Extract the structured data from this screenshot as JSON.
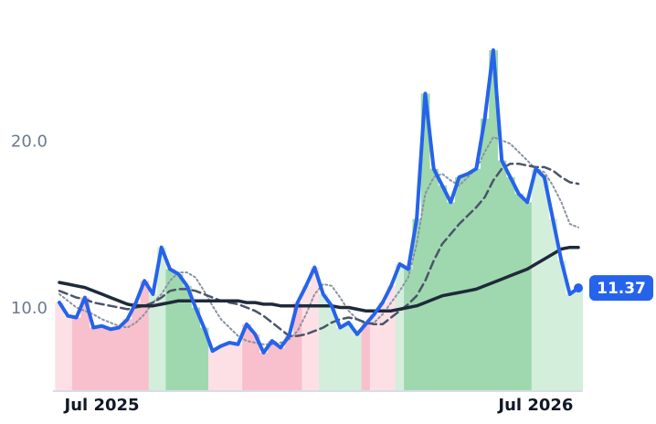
{
  "chart_data": {
    "type": "line",
    "categories": [
      null,
      null,
      null,
      null,
      null,
      "Jul 2025",
      null,
      null,
      null,
      null,
      null,
      null,
      null,
      null,
      null,
      null,
      null,
      null,
      null,
      null,
      null,
      null,
      null,
      null,
      null,
      null,
      null,
      null,
      null,
      null,
      null,
      null,
      null,
      null,
      null,
      null,
      null,
      null,
      null,
      null,
      null,
      null,
      null,
      null,
      null,
      null,
      null,
      null,
      null,
      null,
      null,
      null,
      null,
      null,
      null,
      null,
      "Jul 2026",
      null,
      null,
      null,
      null,
      null
    ],
    "series": [
      {
        "color": "#2563eb",
        "style": "solid",
        "width": 4,
        "bars": true,
        "values": [
          10.5,
          9.7,
          9.6,
          10.8,
          9.0,
          9.1,
          8.9,
          9.0,
          9.5,
          10.5,
          11.8,
          11.0,
          13.8,
          12.5,
          12.2,
          11.5,
          10.2,
          9.0,
          7.6,
          7.9,
          8.1,
          8.0,
          9.2,
          8.6,
          7.5,
          8.2,
          7.8,
          8.5,
          10.5,
          11.5,
          12.6,
          11.0,
          10.3,
          9.0,
          9.3,
          8.6,
          9.2,
          9.8,
          10.5,
          11.5,
          12.8,
          12.5,
          15.5,
          23.0,
          18.5,
          17.5,
          16.5,
          18.0,
          18.2,
          18.5,
          21.5,
          25.6,
          19.0,
          18.0,
          17.0,
          16.5,
          18.5,
          18.0,
          15.5,
          13.0,
          11.0,
          11.37
        ]
      },
      {
        "color": "#1e2a3a",
        "style": "solid",
        "width": 3.5,
        "values": [
          11.7,
          11.6,
          11.5,
          11.4,
          11.2,
          11.0,
          10.8,
          10.6,
          10.4,
          10.3,
          10.3,
          10.3,
          10.4,
          10.5,
          10.6,
          10.6,
          10.6,
          10.6,
          10.6,
          10.6,
          10.6,
          10.6,
          10.5,
          10.5,
          10.4,
          10.4,
          10.3,
          10.3,
          10.3,
          10.3,
          10.3,
          10.3,
          10.3,
          10.2,
          10.2,
          10.1,
          10.0,
          10.0,
          10.0,
          10.0,
          10.1,
          10.2,
          10.3,
          10.5,
          10.7,
          10.9,
          11.0,
          11.1,
          11.2,
          11.3,
          11.5,
          11.7,
          11.9,
          12.1,
          12.3,
          12.5,
          12.8,
          13.1,
          13.4,
          13.7,
          13.8,
          13.8
        ]
      },
      {
        "color": "#4a5568",
        "style": "dashed",
        "width": 2.5,
        "values": [
          11.2,
          11.0,
          10.8,
          10.7,
          10.5,
          10.4,
          10.3,
          10.2,
          10.1,
          10.2,
          10.3,
          10.5,
          10.8,
          11.2,
          11.3,
          11.3,
          11.2,
          11.0,
          10.8,
          10.6,
          10.5,
          10.4,
          10.2,
          10.0,
          9.7,
          9.3,
          8.9,
          8.5,
          8.5,
          8.6,
          8.8,
          9.0,
          9.3,
          9.5,
          9.6,
          9.5,
          9.3,
          9.2,
          9.2,
          9.6,
          10.0,
          10.4,
          10.9,
          11.8,
          13.0,
          14.0,
          14.6,
          15.2,
          15.7,
          16.2,
          16.8,
          17.8,
          18.5,
          18.8,
          18.8,
          18.7,
          18.6,
          18.6,
          18.4,
          18.0,
          17.7,
          17.6
        ]
      },
      {
        "color": "#8a93a3",
        "style": "dotted",
        "width": 2,
        "values": [
          11.0,
          10.6,
          10.2,
          10.0,
          9.8,
          9.5,
          9.3,
          9.1,
          9.0,
          9.3,
          9.8,
          10.5,
          11.0,
          11.8,
          12.3,
          12.3,
          12.0,
          11.2,
          10.3,
          9.5,
          9.0,
          8.5,
          8.2,
          8.1,
          8.0,
          8.0,
          8.1,
          8.3,
          8.8,
          9.8,
          11.0,
          11.6,
          11.5,
          10.8,
          10.0,
          9.5,
          9.2,
          9.3,
          9.8,
          10.5,
          11.2,
          12.0,
          14.0,
          17.0,
          18.0,
          18.2,
          17.8,
          17.5,
          18.0,
          18.5,
          19.5,
          20.4,
          20.2,
          20.0,
          19.5,
          19.0,
          18.5,
          18.3,
          17.5,
          16.5,
          15.2,
          15.0
        ]
      }
    ],
    "bar_colors": [
      "#fde0e6",
      "#fde0e6",
      "#f7c0cc",
      "#f7c0cc",
      "#f7c0cc",
      "#f7c0cc",
      "#f7c0cc",
      "#f7c0cc",
      "#f7c0cc",
      "#f7c0cc",
      "#f7c0cc",
      "#d4eedc",
      "#d4eedc",
      "#9fd8ae",
      "#9fd8ae",
      "#9fd8ae",
      "#9fd8ae",
      "#9fd8ae",
      "#fde0e6",
      "#fde0e6",
      "#fde0e6",
      "#fde0e6",
      "#f7c0cc",
      "#f7c0cc",
      "#f7c0cc",
      "#f7c0cc",
      "#f7c0cc",
      "#f7c0cc",
      "#f7c0cc",
      "#fde0e6",
      "#fde0e6",
      "#d4eedc",
      "#d4eedc",
      "#d4eedc",
      "#d4eedc",
      "#d4eedc",
      "#f7c0cc",
      "#fde0e6",
      "#fde0e6",
      "#fde0e6",
      "#d4eedc",
      "#9fd8ae",
      "#9fd8ae",
      "#9fd8ae",
      "#9fd8ae",
      "#9fd8ae",
      "#9fd8ae",
      "#9fd8ae",
      "#9fd8ae",
      "#9fd8ae",
      "#9fd8ae",
      "#9fd8ae",
      "#9fd8ae",
      "#9fd8ae",
      "#9fd8ae",
      "#9fd8ae",
      "#d4eedc",
      "#d4eedc",
      "#d4eedc",
      "#d4eedc",
      "#d4eedc",
      "#d4eedc"
    ],
    "ylim": [
      5.2,
      28.6
    ],
    "yticks": [
      {
        "value": 10,
        "label": "10.0"
      },
      {
        "value": 20,
        "label": "20.0"
      }
    ],
    "last_value_label": true
  }
}
